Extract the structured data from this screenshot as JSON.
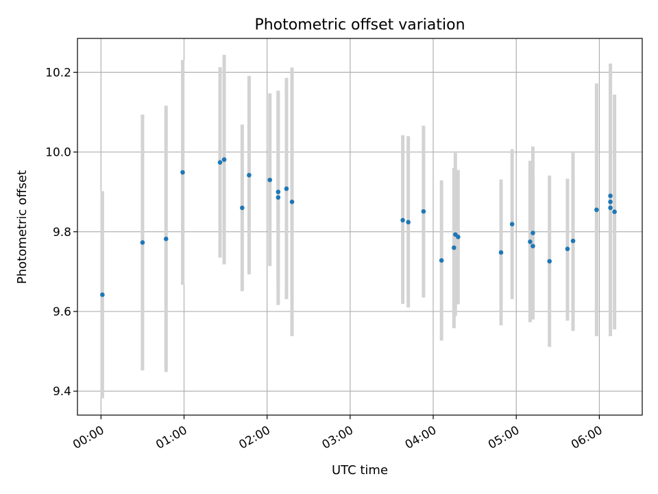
{
  "chart_data": {
    "type": "scatter",
    "title": "Photometric offset variation",
    "xlabel": "UTC time",
    "ylabel": "Photometric offset",
    "xlim": [
      "23:43",
      "06:31"
    ],
    "ylim": [
      9.34,
      10.285
    ],
    "grid": true,
    "legend": "none",
    "x_ticks": [
      "00:00",
      "01:00",
      "02:00",
      "03:00",
      "04:00",
      "05:00",
      "06:00"
    ],
    "y_ticks": [
      "9.4",
      "9.6",
      "9.8",
      "10.0",
      "10.2"
    ],
    "errorbar_color": "#d3d3d3",
    "marker_color": "#1f77b4",
    "series": [
      {
        "points": [
          {
            "x": "00:01",
            "y": 9.642,
            "low": 9.382,
            "high": 9.902
          },
          {
            "x": "00:30",
            "y": 9.773,
            "low": 9.452,
            "high": 10.094
          },
          {
            "x": "00:47",
            "y": 9.782,
            "low": 9.448,
            "high": 10.116
          },
          {
            "x": "00:59",
            "y": 9.949,
            "low": 9.667,
            "high": 10.231
          },
          {
            "x": "01:26",
            "y": 9.974,
            "low": 9.735,
            "high": 10.213
          },
          {
            "x": "01:29",
            "y": 9.981,
            "low": 9.718,
            "high": 10.244
          },
          {
            "x": "01:42",
            "y": 9.86,
            "low": 9.651,
            "high": 10.069
          },
          {
            "x": "01:47",
            "y": 9.942,
            "low": 9.693,
            "high": 10.191
          },
          {
            "x": "02:02",
            "y": 9.93,
            "low": 9.714,
            "high": 10.147
          },
          {
            "x": "02:08",
            "y": 9.886,
            "low": 9.616,
            "high": 10.149
          },
          {
            "x": "02:08",
            "y": 9.9,
            "low": 9.665,
            "high": 10.154
          },
          {
            "x": "02:14",
            "y": 9.908,
            "low": 9.631,
            "high": 10.186
          },
          {
            "x": "02:18",
            "y": 9.875,
            "low": 9.538,
            "high": 10.212
          },
          {
            "x": "03:38",
            "y": 9.829,
            "low": 9.619,
            "high": 10.042
          },
          {
            "x": "03:42",
            "y": 9.824,
            "low": 9.61,
            "high": 10.04
          },
          {
            "x": "03:53",
            "y": 9.851,
            "low": 9.635,
            "high": 10.066
          },
          {
            "x": "04:06",
            "y": 9.728,
            "low": 9.527,
            "high": 9.929
          },
          {
            "x": "04:15",
            "y": 9.76,
            "low": 9.558,
            "high": 9.96
          },
          {
            "x": "04:16",
            "y": 9.793,
            "low": 9.589,
            "high": 9.998
          },
          {
            "x": "04:18",
            "y": 9.787,
            "low": 9.618,
            "high": 9.955
          },
          {
            "x": "04:49",
            "y": 9.748,
            "low": 9.565,
            "high": 9.931
          },
          {
            "x": "04:57",
            "y": 9.819,
            "low": 9.631,
            "high": 10.007
          },
          {
            "x": "05:10",
            "y": 9.775,
            "low": 9.573,
            "high": 9.978
          },
          {
            "x": "05:12",
            "y": 9.797,
            "low": 9.58,
            "high": 10.014
          },
          {
            "x": "05:12",
            "y": 9.764,
            "low": 9.59,
            "high": 9.938
          },
          {
            "x": "05:24",
            "y": 9.726,
            "low": 9.511,
            "high": 9.941
          },
          {
            "x": "05:37",
            "y": 9.757,
            "low": 9.577,
            "high": 9.933
          },
          {
            "x": "05:41",
            "y": 9.777,
            "low": 9.551,
            "high": 10.002
          },
          {
            "x": "05:58",
            "y": 9.855,
            "low": 9.538,
            "high": 10.172
          },
          {
            "x": "06:08",
            "y": 9.89,
            "low": 9.558,
            "high": 10.222
          },
          {
            "x": "06:08",
            "y": 9.875,
            "low": 9.61,
            "high": 10.14
          },
          {
            "x": "06:08",
            "y": 9.86,
            "low": 9.538,
            "high": 10.18
          },
          {
            "x": "06:11",
            "y": 9.85,
            "low": 9.555,
            "high": 10.144
          }
        ]
      }
    ]
  }
}
